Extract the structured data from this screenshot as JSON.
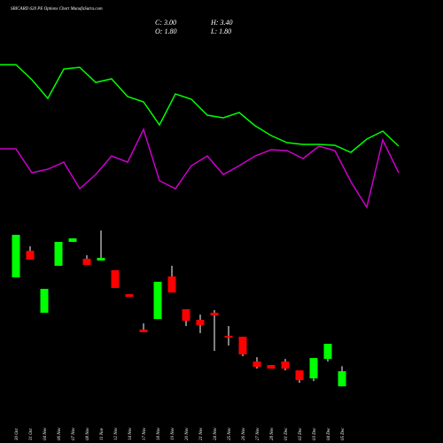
{
  "chart_data": [
    {
      "type": "candlestick",
      "title": "SBICARD 620 PE Options Chart MunafaSutra.com",
      "annotations": [
        "C: 3.00",
        "H: 3.40",
        "O: 1.80",
        "L: 1.80"
      ],
      "categories": [
        "30 Oct",
        "31 Oct",
        "04 Nov",
        "06 Nov",
        "07 Nov",
        "08 Nov",
        "11 Nov",
        "12 Nov",
        "14 Nov",
        "17 Nov",
        "18 Nov",
        "19 Nov",
        "20 Nov",
        "21 Nov",
        "24 Nov",
        "25 Nov",
        "26 Nov",
        "27 Nov",
        "28 Nov",
        "01 Dec",
        "02 Dec",
        "03 Dec",
        "04 Dec",
        "05 Dec"
      ],
      "open": [
        10.46,
        12.57,
        7.65,
        11.38,
        13.28,
        11.94,
        11.8,
        11.03,
        9.12,
        6.31,
        7.15,
        10.53,
        7.93,
        7.08,
        7.65,
        5.81,
        5.74,
        3.77,
        3.49,
        3.77,
        3.07,
        2.43,
        3.98,
        1.8
      ],
      "high": [
        13.84,
        12.93,
        9.55,
        13.28,
        13.56,
        12.22,
        14.19,
        11.03,
        9.12,
        6.8,
        10.11,
        11.38,
        7.93,
        7.5,
        7.86,
        6.59,
        5.74,
        4.12,
        3.49,
        3.98,
        3.07,
        4.05,
        5.18,
        3.4
      ],
      "low": [
        10.46,
        11.87,
        7.65,
        11.38,
        13.28,
        11.45,
        11.8,
        9.62,
        8.91,
        6.1,
        7.15,
        9.26,
        6.59,
        6.03,
        4.62,
        5.04,
        4.19,
        3.21,
        3.21,
        3.07,
        2.08,
        2.22,
        3.77,
        1.8
      ],
      "close": [
        13.84,
        11.87,
        9.55,
        13.28,
        13.56,
        11.45,
        12.01,
        9.62,
        8.91,
        6.1,
        10.11,
        9.26,
        7.01,
        6.66,
        7.43,
        5.67,
        4.34,
        3.35,
        3.21,
        3.21,
        2.29,
        4.05,
        5.18,
        3.0
      ],
      "up_color": "#00ff00",
      "down_color": "#ff0000",
      "ylim": [
        0,
        15
      ]
    },
    {
      "type": "line",
      "categories": [
        null,
        null,
        null,
        null,
        null,
        null,
        null,
        null,
        null,
        null,
        null,
        null,
        null,
        null,
        null,
        null,
        null,
        null,
        null,
        null,
        null,
        null,
        null,
        null,
        null,
        null
      ],
      "series": [
        {
          "color": "#00ff00",
          "values": [
            187,
            187,
            170,
            149,
            182,
            184,
            167,
            171,
            151,
            145,
            119,
            154,
            148,
            130,
            127,
            133,
            118,
            107,
            99,
            97,
            97,
            96,
            88,
            103,
            112,
            95
          ]
        },
        {
          "color": "#cc00cc",
          "values": [
            92,
            92,
            65,
            69,
            77,
            47,
            63,
            84,
            77,
            114,
            56,
            47,
            73,
            84,
            63,
            73,
            84,
            91,
            90,
            81,
            95,
            90,
            55,
            26,
            102,
            65
          ]
        }
      ],
      "ylim": [
        0,
        200
      ]
    }
  ]
}
